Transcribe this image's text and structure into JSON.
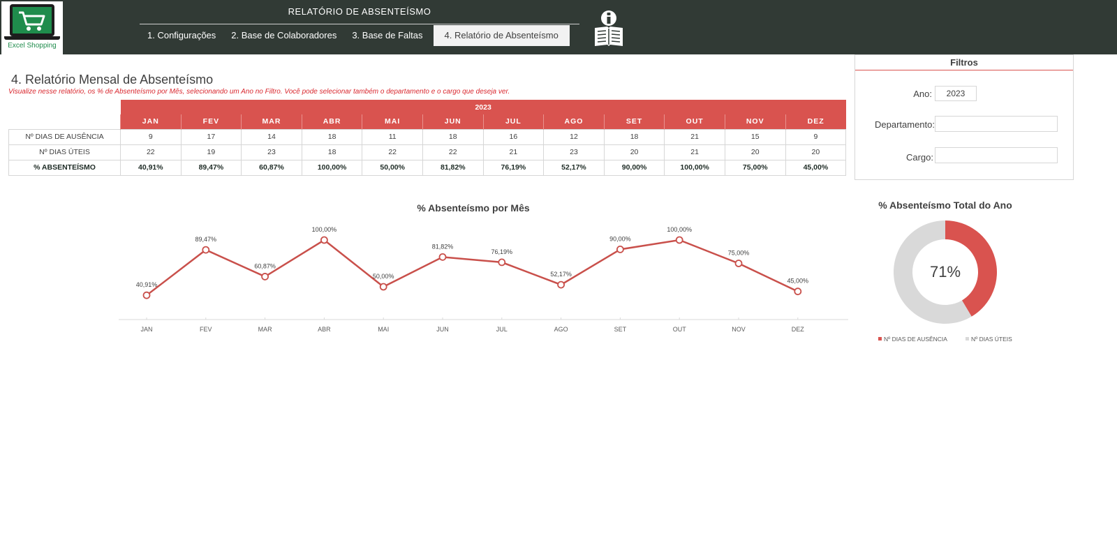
{
  "header": {
    "logo_text": "Excel Shopping",
    "title": "RELATÓRIO DE ABSENTEÍSMO",
    "tabs": [
      {
        "label": "1. Configurações",
        "active": false
      },
      {
        "label": "2. Base de Colaboradores",
        "active": false
      },
      {
        "label": "3. Base de Faltas",
        "active": false
      },
      {
        "label": "4. Relatório de Absenteísmo",
        "active": true
      }
    ],
    "icon": "info-book-icon"
  },
  "page": {
    "title": "4. Relatório Mensal de Absenteísmo",
    "subtitle": "Visualize nesse relatório, os % de Absenteísmo por Mês, selecionando um Ano no Filtro. Você pode selecionar também o departamento e o cargo que deseja ver."
  },
  "table": {
    "year": "2023",
    "months": [
      "JAN",
      "FEV",
      "MAR",
      "ABR",
      "MAI",
      "JUN",
      "JUL",
      "AGO",
      "SET",
      "OUT",
      "NOV",
      "DEZ"
    ],
    "rows": [
      {
        "label": "Nº DIAS DE AUSÊNCIA",
        "values": [
          "9",
          "17",
          "14",
          "18",
          "11",
          "18",
          "16",
          "12",
          "18",
          "21",
          "15",
          "9"
        ]
      },
      {
        "label": "Nº DIAS ÚTEIS",
        "values": [
          "22",
          "19",
          "23",
          "18",
          "22",
          "22",
          "21",
          "23",
          "20",
          "21",
          "20",
          "20"
        ]
      },
      {
        "label": "% ABSENTEÍSMO",
        "values": [
          "40,91%",
          "89,47%",
          "60,87%",
          "100,00%",
          "50,00%",
          "81,82%",
          "76,19%",
          "52,17%",
          "90,00%",
          "100,00%",
          "75,00%",
          "45,00%"
        ]
      }
    ]
  },
  "filters": {
    "title": "Filtros",
    "ano_label": "Ano:",
    "ano_value": "2023",
    "departamento_label": "Departamento:",
    "departamento_value": "",
    "cargo_label": "Cargo:",
    "cargo_value": ""
  },
  "chart_data": [
    {
      "type": "line",
      "title": "% Absenteísmo por Mês",
      "categories": [
        "JAN",
        "FEV",
        "MAR",
        "ABR",
        "MAI",
        "JUN",
        "JUL",
        "AGO",
        "SET",
        "OUT",
        "NOV",
        "DEZ"
      ],
      "values": [
        40.91,
        89.47,
        60.87,
        100.0,
        50.0,
        81.82,
        76.19,
        52.17,
        90.0,
        100.0,
        75.0,
        45.0
      ],
      "labels": [
        "40,91%",
        "89,47%",
        "60,87%",
        "100,00%",
        "50,00%",
        "81,82%",
        "76,19%",
        "52,17%",
        "90,00%",
        "100,00%",
        "75,00%",
        "45,00%"
      ],
      "color": "#c9504b",
      "ylim": [
        0,
        100
      ],
      "grid": false
    },
    {
      "type": "pie",
      "title": "% Absenteísmo Total do Ano",
      "center_label": "71%",
      "slices": [
        {
          "name": "Nº DIAS DE AUSÊNCIA",
          "value": 178,
          "color": "#d9534f"
        },
        {
          "name": "Nº DIAS ÚTEIS",
          "value": 251,
          "color": "#d9d9d9"
        }
      ],
      "legend": "bottom"
    }
  ]
}
